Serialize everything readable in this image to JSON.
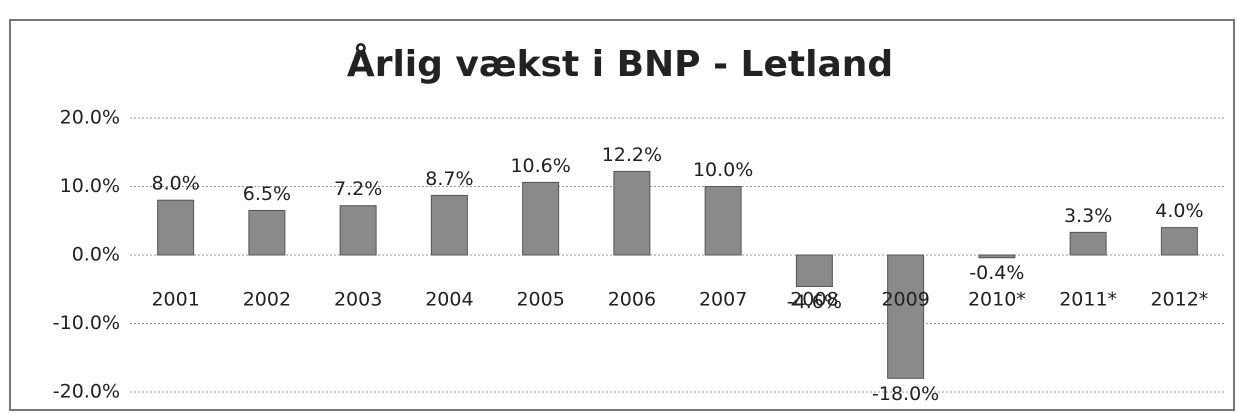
{
  "chart_data": {
    "type": "bar",
    "title": "Årlig vækst i BNP - Letland",
    "categories": [
      "2001",
      "2002",
      "2003",
      "2004",
      "2005",
      "2006",
      "2007",
      "2008",
      "2009",
      "2010*",
      "2011*",
      "2012*"
    ],
    "values": [
      8.0,
      6.5,
      7.2,
      8.7,
      10.6,
      12.2,
      10.0,
      -4.6,
      -18.0,
      -0.4,
      3.3,
      4.0
    ],
    "value_labels": [
      "8.0%",
      "6.5%",
      "7.2%",
      "8.7%",
      "10.6%",
      "12.2%",
      "10.0%",
      "-4.6%",
      "-18.0%",
      "-0.4%",
      "3.3%",
      "4.0%"
    ],
    "color": "#8a8a8a",
    "ylim": [
      -20,
      20
    ],
    "yticks": [
      {
        "value": -20,
        "label": "-20.0%"
      },
      {
        "value": -10,
        "label": "-10.0%"
      },
      {
        "value": 0,
        "label": "0.0%"
      },
      {
        "value": 10,
        "label": "10.0%"
      },
      {
        "value": 20,
        "label": "20.0%"
      }
    ],
    "grid": true
  }
}
